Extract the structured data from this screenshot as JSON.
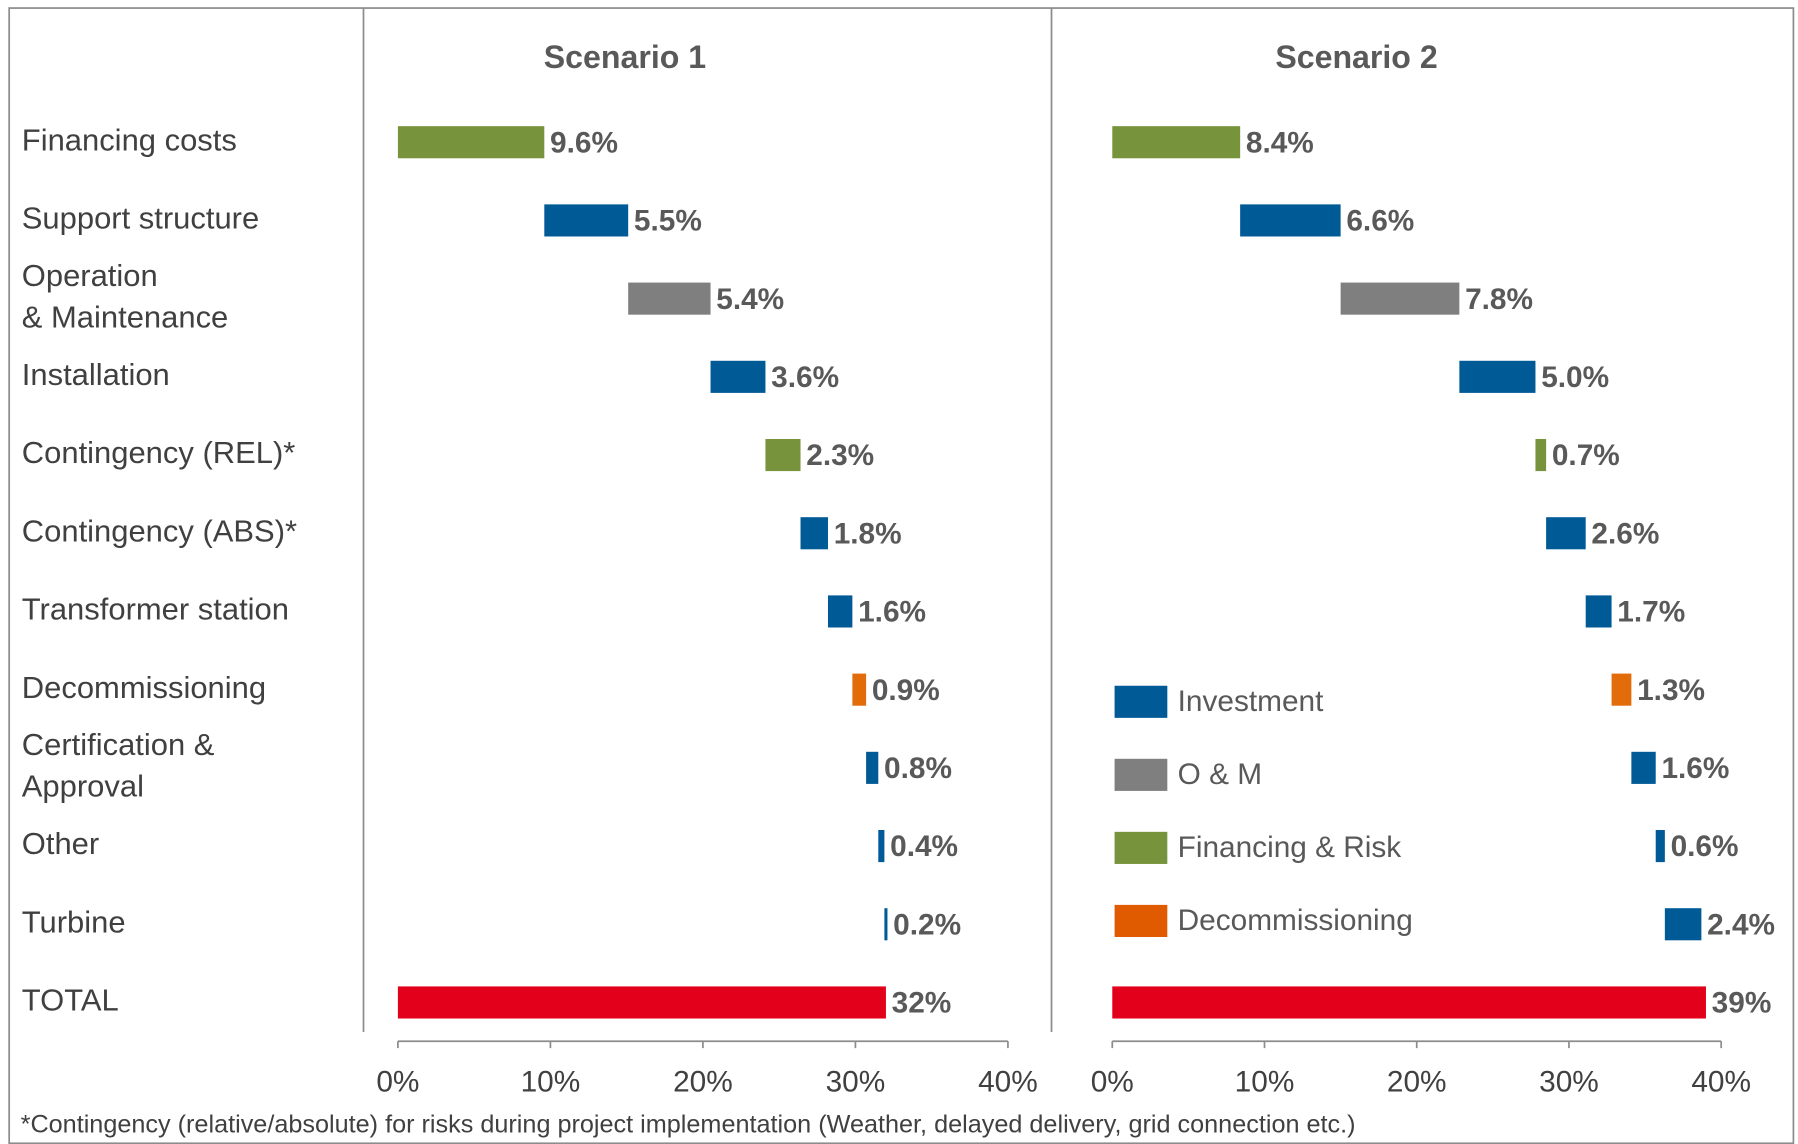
{
  "chart_data": [
    {
      "type": "waterfall",
      "title": "Scenario 1",
      "categories": [
        "Financing costs",
        "Support structure",
        "Operation\n& Maintenance",
        "Installation",
        "Contingency (REL)*",
        "Contingency (ABS)*",
        "Transformer station",
        "Decommissioning",
        "Certification &\nApproval",
        "Other",
        "Turbine",
        "TOTAL"
      ],
      "values": [
        9.6,
        5.5,
        5.4,
        3.6,
        2.3,
        1.8,
        1.6,
        0.9,
        0.8,
        0.4,
        0.2,
        32
      ],
      "value_labels": [
        "9.6%",
        "5.5%",
        "5.4%",
        "3.6%",
        "2.3%",
        "1.8%",
        "1.6%",
        "0.9%",
        "0.8%",
        "0.4%",
        "0.2%",
        "32%"
      ],
      "colors": [
        "#77933c",
        "#005a96",
        "#7f7f7f",
        "#005a96",
        "#77933c",
        "#005a96",
        "#005a96",
        "#e26b0a",
        "#005a96",
        "#005a96",
        "#005a96",
        "#e2001a"
      ],
      "totals": [
        11
      ],
      "xlim": [
        0,
        40
      ],
      "xticks": [
        {
          "value": 0,
          "label": "0%"
        },
        {
          "value": 10,
          "label": "10%"
        },
        {
          "value": 20,
          "label": "20%"
        },
        {
          "value": 30,
          "label": "30%"
        },
        {
          "value": 40,
          "label": "40%"
        }
      ]
    },
    {
      "type": "waterfall",
      "title": "Scenario 2",
      "values": [
        8.4,
        6.6,
        7.8,
        5.0,
        0.7,
        2.6,
        1.7,
        1.3,
        1.6,
        0.6,
        2.4,
        39
      ],
      "value_labels": [
        "8.4%",
        "6.6%",
        "7.8%",
        "5.0%",
        "0.7%",
        "2.6%",
        "1.7%",
        "1.3%",
        "1.6%",
        "0.6%",
        "2.4%",
        "39%"
      ],
      "colors": [
        "#77933c",
        "#005a96",
        "#7f7f7f",
        "#005a96",
        "#77933c",
        "#005a96",
        "#005a96",
        "#e26b0a",
        "#005a96",
        "#005a96",
        "#005a96",
        "#e2001a"
      ],
      "totals": [
        11
      ],
      "xlim": [
        0,
        40
      ],
      "xticks": [
        {
          "value": 0,
          "label": "0%"
        },
        {
          "value": 10,
          "label": "10%"
        },
        {
          "value": 20,
          "label": "20%"
        },
        {
          "value": 30,
          "label": "30%"
        },
        {
          "value": 40,
          "label": "40%"
        }
      ],
      "legend": [
        {
          "name": "Investment",
          "color": "#005a96"
        },
        {
          "name": "O & M",
          "color": "#7f7f7f"
        },
        {
          "name": "Financing & Risk",
          "color": "#77933c"
        },
        {
          "name": "Decommissioning",
          "color": "#e05a00"
        }
      ]
    }
  ],
  "footnote": "*Contingency (relative/absolute) for risks during project implementation (Weather, delayed delivery, grid connection etc.)"
}
